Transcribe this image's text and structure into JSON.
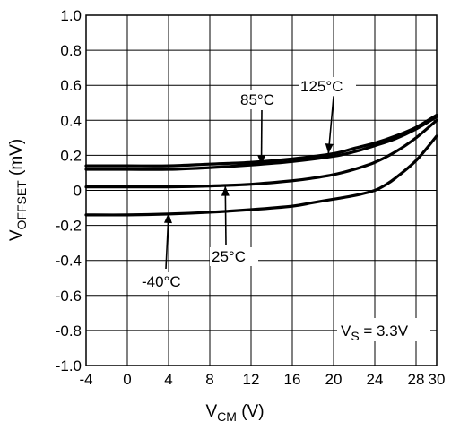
{
  "chart_data": {
    "type": "line",
    "xlabel": "V",
    "xlabel_sub": "CM",
    "xlabel_unit": " (V)",
    "ylabel": "V",
    "ylabel_sub": "OFFSET",
    "ylabel_unit": " (mV)",
    "xlim": [
      -4,
      30
    ],
    "ylim": [
      -1.0,
      1.0
    ],
    "x_ticks": [
      -4,
      0,
      4,
      8,
      12,
      16,
      20,
      24,
      28,
      30
    ],
    "x_tick_labels": [
      "-4",
      "0",
      "4",
      "8",
      "12",
      "16",
      "20",
      "24",
      "28",
      "30"
    ],
    "y_ticks": [
      1.0,
      0.8,
      0.6,
      0.4,
      0.2,
      0,
      -0.2,
      -0.4,
      -0.6,
      -0.8,
      -1.0
    ],
    "y_tick_labels": [
      "1.0",
      "0.8",
      "0.6",
      "0.4",
      "0.2",
      "0",
      "-0.2",
      "-0.4",
      "-0.6",
      "-0.8",
      "-1.0"
    ],
    "grid": true,
    "legend": "none",
    "series": [
      {
        "name": "125°C",
        "x": [
          -4,
          0,
          4,
          8,
          12,
          16,
          20,
          22,
          24,
          26,
          28,
          30
        ],
        "y": [
          0.14,
          0.14,
          0.14,
          0.15,
          0.16,
          0.18,
          0.21,
          0.24,
          0.27,
          0.31,
          0.36,
          0.43
        ]
      },
      {
        "name": "85°C",
        "x": [
          -4,
          0,
          4,
          8,
          12,
          16,
          20,
          22,
          24,
          26,
          28,
          30
        ],
        "y": [
          0.12,
          0.12,
          0.12,
          0.13,
          0.145,
          0.165,
          0.195,
          0.22,
          0.255,
          0.295,
          0.35,
          0.42
        ]
      },
      {
        "name": "25°C",
        "x": [
          -4,
          0,
          4,
          8,
          12,
          16,
          18,
          20,
          22,
          24,
          26,
          28,
          30
        ],
        "y": [
          0.02,
          0.02,
          0.02,
          0.025,
          0.035,
          0.055,
          0.07,
          0.09,
          0.12,
          0.16,
          0.22,
          0.3,
          0.4
        ]
      },
      {
        "name": "-40°C",
        "x": [
          -4,
          0,
          4,
          8,
          12,
          16,
          18,
          20,
          22,
          24,
          25,
          26,
          28,
          30
        ],
        "y": [
          -0.14,
          -0.14,
          -0.135,
          -0.125,
          -0.11,
          -0.09,
          -0.07,
          -0.05,
          -0.03,
          0.0,
          0.03,
          0.07,
          0.17,
          0.31
        ]
      }
    ],
    "annotations": [
      {
        "text": "125°C",
        "arrow_to": [
          19.5,
          0.21
        ]
      },
      {
        "text": "85°C",
        "arrow_to": [
          13.0,
          0.145
        ]
      },
      {
        "text": "25°C",
        "arrow_to": [
          9.5,
          0.025
        ]
      },
      {
        "text": "-40°C",
        "arrow_to": [
          4.0,
          -0.13
        ]
      }
    ],
    "condition": {
      "text": "V",
      "sub": "S",
      "value": " = 3.3V"
    }
  }
}
